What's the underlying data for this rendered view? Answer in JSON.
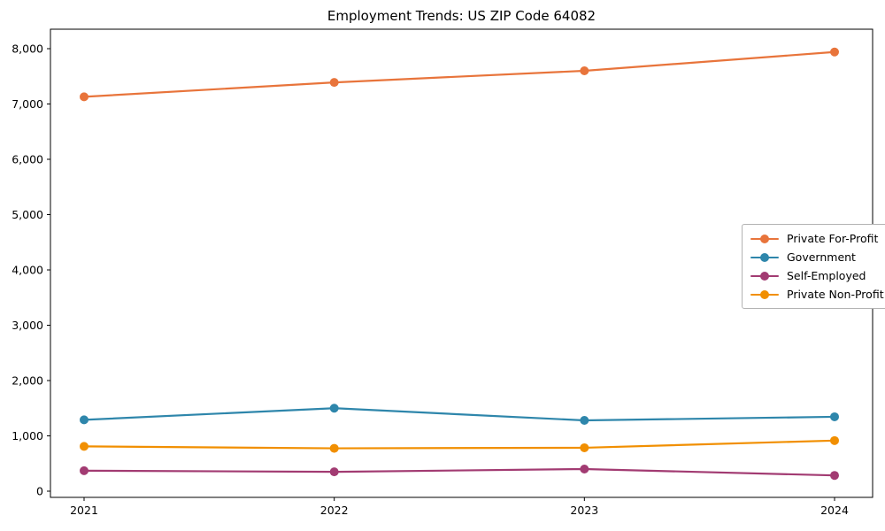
{
  "title": "Employment Trends: US ZIP Code 64082",
  "chart_data": {
    "type": "line",
    "x_labels": [
      "2021",
      "2022",
      "2023",
      "2024"
    ],
    "yticks": [
      0,
      1000,
      2000,
      3000,
      4000,
      5000,
      6000,
      7000,
      8000
    ],
    "ylim": [
      0,
      8000
    ],
    "grid": false,
    "legend_position": "center-right",
    "marker": "circle",
    "series": [
      {
        "name": "Private For-Profit",
        "color": "#e8743b",
        "values": [
          7130,
          7390,
          7600,
          7940
        ]
      },
      {
        "name": "Government",
        "color": "#2e86ab",
        "values": [
          1290,
          1500,
          1280,
          1345
        ]
      },
      {
        "name": "Self-Employed",
        "color": "#a23b72",
        "values": [
          370,
          350,
          400,
          285
        ]
      },
      {
        "name": "Private Non-Profit",
        "color": "#f18f01",
        "values": [
          810,
          775,
          785,
          915
        ]
      }
    ]
  }
}
